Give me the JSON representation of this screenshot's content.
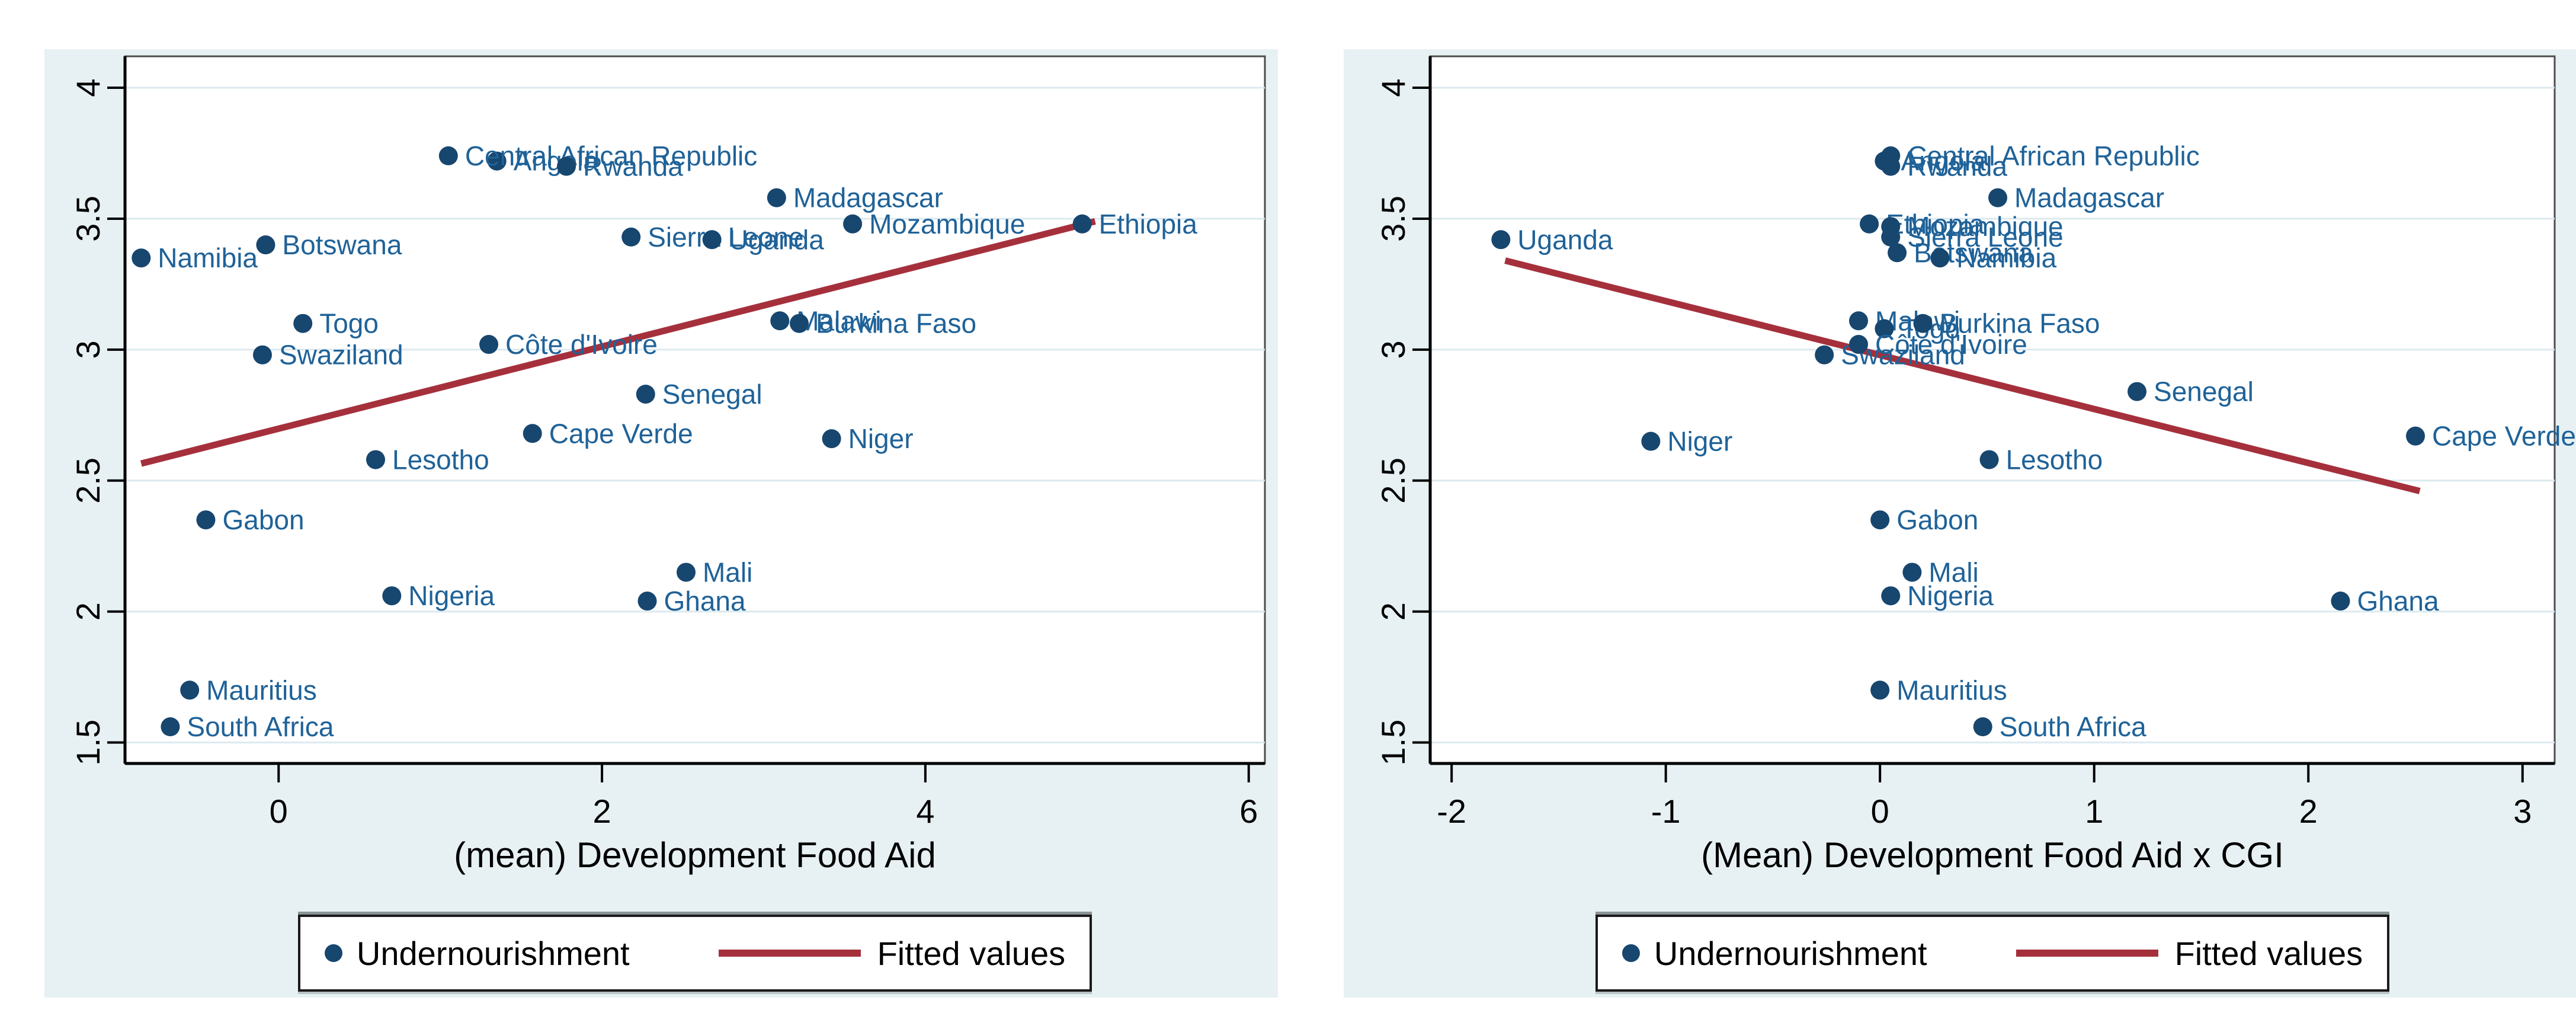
{
  "page": {
    "kind": "figure",
    "background": "#ffffff"
  },
  "colors": {
    "panel_bg": "#e7f1f3",
    "plot_bg": "#ffffff",
    "gridline": "#dceaf0",
    "axis": "#000000",
    "marker": "#17466f",
    "marker_label": "#1f6298",
    "fit_line": "#a5303c"
  },
  "chart_data": [
    {
      "type": "scatter",
      "title": "",
      "xlabel": "(mean) Development Food Aid",
      "ylabel": "",
      "xlim": [
        -0.95,
        6.1
      ],
      "ylim": [
        1.42,
        4.12
      ],
      "x_ticks": [
        "0",
        "2",
        "4",
        "6"
      ],
      "x_tick_values": [
        0,
        2,
        4,
        6
      ],
      "y_ticks": [
        "1.5",
        "2",
        "2.5",
        "3",
        "3.5",
        "4"
      ],
      "y_tick_values": [
        1.5,
        2,
        2.5,
        3,
        3.5,
        4
      ],
      "grid": "horizontal",
      "legend": [
        "Undernourishment",
        "Fitted values"
      ],
      "legend_position": "bottom-center",
      "series": [
        {
          "name": "Undernourishment",
          "points": [
            {
              "label": "Namibia",
              "x": -0.85,
              "y": 3.35
            },
            {
              "label": "Botswana",
              "x": -0.08,
              "y": 3.4
            },
            {
              "label": "Angola",
              "x": 1.35,
              "y": 3.72
            },
            {
              "label": "Central African Republic",
              "x": 1.05,
              "y": 3.74
            },
            {
              "label": "Rwanda",
              "x": 1.78,
              "y": 3.7
            },
            {
              "label": "Madagascar",
              "x": 3.08,
              "y": 3.58
            },
            {
              "label": "Mozambique",
              "x": 3.55,
              "y": 3.48
            },
            {
              "label": "Sierra Leone",
              "x": 2.18,
              "y": 3.43
            },
            {
              "label": "Uganda",
              "x": 2.68,
              "y": 3.42
            },
            {
              "label": "Ethiopia",
              "x": 4.97,
              "y": 3.48
            },
            {
              "label": "Togo",
              "x": 0.15,
              "y": 3.1
            },
            {
              "label": "Swaziland",
              "x": -0.1,
              "y": 2.98
            },
            {
              "label": "Côte d'Ivoire",
              "x": 1.3,
              "y": 3.02
            },
            {
              "label": "Malawi",
              "x": 3.1,
              "y": 3.11
            },
            {
              "label": "Burkina Faso",
              "x": 3.22,
              "y": 3.1
            },
            {
              "label": "Senegal",
              "x": 2.27,
              "y": 2.83
            },
            {
              "label": "Cape Verde",
              "x": 1.57,
              "y": 2.68
            },
            {
              "label": "Niger",
              "x": 3.42,
              "y": 2.66
            },
            {
              "label": "Lesotho",
              "x": 0.6,
              "y": 2.58
            },
            {
              "label": "Gabon",
              "x": -0.45,
              "y": 2.35
            },
            {
              "label": "Nigeria",
              "x": 0.7,
              "y": 2.06
            },
            {
              "label": "Mali",
              "x": 2.52,
              "y": 2.15
            },
            {
              "label": "Ghana",
              "x": 2.28,
              "y": 2.04
            },
            {
              "label": "Mauritius",
              "x": -0.55,
              "y": 1.7
            },
            {
              "label": "South Africa",
              "x": -0.67,
              "y": 1.56
            }
          ]
        }
      ],
      "fit_line": {
        "name": "Fitted values",
        "x1": -0.85,
        "y1": 2.565,
        "x2": 5.05,
        "y2": 3.49
      }
    },
    {
      "type": "scatter",
      "title": "",
      "xlabel": "(Mean) Development Food Aid x CGI",
      "ylabel": "",
      "xlim": [
        -2.1,
        3.15
      ],
      "ylim": [
        1.42,
        4.12
      ],
      "x_ticks": [
        "-2",
        "-1",
        "0",
        "1",
        "2",
        "3"
      ],
      "x_tick_values": [
        -2,
        -1,
        0,
        1,
        2,
        3
      ],
      "y_ticks": [
        "1.5",
        "2",
        "2.5",
        "3",
        "3.5",
        "4"
      ],
      "y_tick_values": [
        1.5,
        2,
        2.5,
        3,
        3.5,
        4
      ],
      "grid": "horizontal",
      "legend": [
        "Undernourishment",
        "Fitted values"
      ],
      "legend_position": "bottom-center",
      "series": [
        {
          "name": "Undernourishment",
          "points": [
            {
              "label": "Uganda",
              "x": -1.77,
              "y": 3.42
            },
            {
              "label": "Angola",
              "x": 0.02,
              "y": 3.72
            },
            {
              "label": "Central African Republic",
              "x": 0.05,
              "y": 3.74
            },
            {
              "label": "Rwanda",
              "x": 0.05,
              "y": 3.7
            },
            {
              "label": "Madagascar",
              "x": 0.55,
              "y": 3.58
            },
            {
              "label": "Ethiopia",
              "x": -0.05,
              "y": 3.48
            },
            {
              "label": "Mozambique",
              "x": 0.05,
              "y": 3.47
            },
            {
              "label": "Sierra Leone",
              "x": 0.05,
              "y": 3.43
            },
            {
              "label": "Botswana",
              "x": 0.08,
              "y": 3.37
            },
            {
              "label": "Namibia",
              "x": 0.28,
              "y": 3.35
            },
            {
              "label": "Malawi",
              "x": -0.1,
              "y": 3.11
            },
            {
              "label": "Togo",
              "x": 0.02,
              "y": 3.08
            },
            {
              "label": "Burkina Faso",
              "x": 0.2,
              "y": 3.1
            },
            {
              "label": "Swaziland",
              "x": -0.26,
              "y": 2.98
            },
            {
              "label": "Côte d'Ivoire",
              "x": -0.1,
              "y": 3.02
            },
            {
              "label": "Senegal",
              "x": 1.2,
              "y": 2.84
            },
            {
              "label": "Cape Verde",
              "x": 2.5,
              "y": 2.67
            },
            {
              "label": "Niger",
              "x": -1.07,
              "y": 2.65
            },
            {
              "label": "Lesotho",
              "x": 0.51,
              "y": 2.58
            },
            {
              "label": "Gabon",
              "x": 0.0,
              "y": 2.35
            },
            {
              "label": "Mali",
              "x": 0.15,
              "y": 2.15
            },
            {
              "label": "Nigeria",
              "x": 0.05,
              "y": 2.06
            },
            {
              "label": "Ghana",
              "x": 2.15,
              "y": 2.04
            },
            {
              "label": "Mauritius",
              "x": 0.0,
              "y": 1.7
            },
            {
              "label": "South Africa",
              "x": 0.48,
              "y": 1.56
            }
          ]
        }
      ],
      "fit_line": {
        "name": "Fitted values",
        "x1": -1.75,
        "y1": 3.34,
        "x2": 2.52,
        "y2": 2.46
      }
    }
  ]
}
